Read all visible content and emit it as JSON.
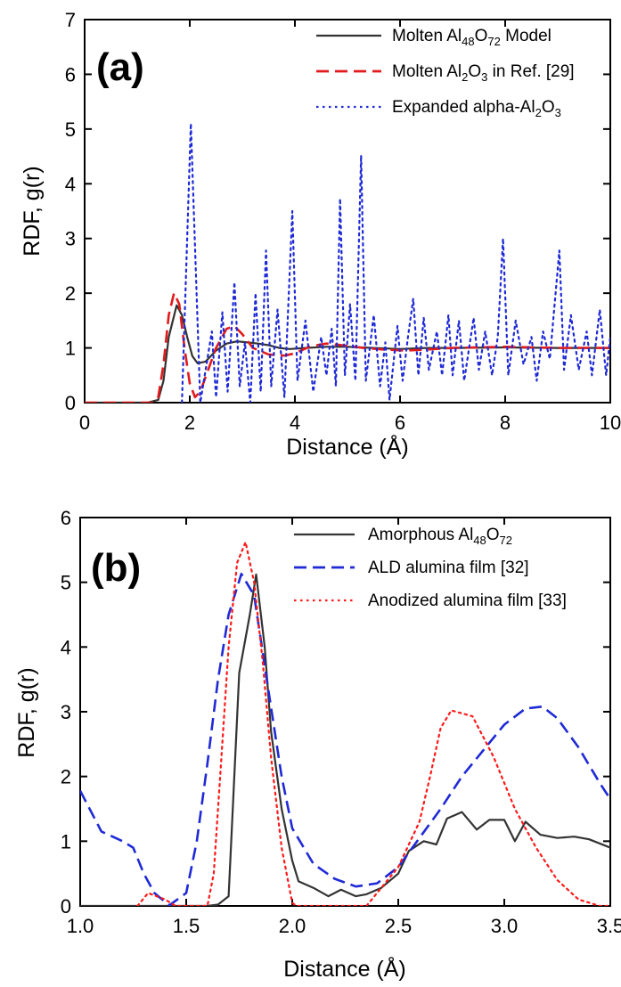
{
  "colors": {
    "black": "#333333",
    "red": "#e31a1c",
    "blue": "#1f2ad6",
    "red_dot": "#ff1a1a"
  },
  "chart_data": [
    {
      "type": "line",
      "panel_label": "(a)",
      "xlabel": "Distance (Å)",
      "ylabel": "RDF, g(r)",
      "xlim": [
        0,
        10
      ],
      "ylim": [
        0,
        7
      ],
      "xticks": [
        0,
        2,
        4,
        6,
        8,
        10
      ],
      "xtick_labels": [
        "0",
        "2",
        "4",
        "6",
        "8",
        "10"
      ],
      "yticks": [
        0,
        1,
        2,
        3,
        4,
        5,
        6,
        7
      ],
      "ytick_labels": [
        "0",
        "1",
        "2",
        "3",
        "4",
        "5",
        "6",
        "7"
      ],
      "legend_position": "top-right",
      "series": [
        {
          "name": "Molten Al48O72 Model",
          "legend": [
            {
              "t": "Molten Al"
            },
            {
              "t": "48",
              "sub": true
            },
            {
              "t": "O"
            },
            {
              "t": "72",
              "sub": true
            },
            {
              "t": " Model"
            }
          ],
          "color": "#333333",
          "style": "solid",
          "points": [
            [
              0,
              0
            ],
            [
              1.2,
              0
            ],
            [
              1.4,
              0.05
            ],
            [
              1.5,
              0.4
            ],
            [
              1.6,
              1.2
            ],
            [
              1.75,
              1.78
            ],
            [
              1.85,
              1.6
            ],
            [
              1.95,
              1.2
            ],
            [
              2.05,
              0.85
            ],
            [
              2.15,
              0.72
            ],
            [
              2.3,
              0.75
            ],
            [
              2.5,
              0.95
            ],
            [
              2.7,
              1.08
            ],
            [
              2.9,
              1.12
            ],
            [
              3.1,
              1.1
            ],
            [
              3.3,
              1.08
            ],
            [
              3.5,
              1.05
            ],
            [
              3.7,
              1.0
            ],
            [
              3.9,
              0.98
            ],
            [
              4.2,
              1.0
            ],
            [
              4.6,
              1.02
            ],
            [
              5,
              1.02
            ],
            [
              5.5,
              1.0
            ],
            [
              6,
              0.98
            ],
            [
              6.5,
              1.0
            ],
            [
              7,
              1.0
            ],
            [
              8,
              1.01
            ],
            [
              9,
              1.0
            ],
            [
              10,
              1.0
            ]
          ]
        },
        {
          "name": "Molten Al2O3 in Ref. [29]",
          "legend": [
            {
              "t": "Molten Al"
            },
            {
              "t": "2",
              "sub": true
            },
            {
              "t": "O"
            },
            {
              "t": "3",
              "sub": true
            },
            {
              "t": " in Ref. [29]"
            }
          ],
          "color": "#e31a1c",
          "style": "dashed",
          "points": [
            [
              0,
              0
            ],
            [
              1.3,
              0
            ],
            [
              1.4,
              0.1
            ],
            [
              1.5,
              0.7
            ],
            [
              1.6,
              1.6
            ],
            [
              1.7,
              2.0
            ],
            [
              1.8,
              1.8
            ],
            [
              1.9,
              1.0
            ],
            [
              2.0,
              0.35
            ],
            [
              2.1,
              0.1
            ],
            [
              2.2,
              0.2
            ],
            [
              2.35,
              0.6
            ],
            [
              2.5,
              1.0
            ],
            [
              2.7,
              1.35
            ],
            [
              2.85,
              1.4
            ],
            [
              3.0,
              1.25
            ],
            [
              3.2,
              1.0
            ],
            [
              3.5,
              0.88
            ],
            [
              3.8,
              0.86
            ],
            [
              4.0,
              0.9
            ],
            [
              4.3,
              1.03
            ],
            [
              4.6,
              1.08
            ],
            [
              4.9,
              1.05
            ],
            [
              5.3,
              1.0
            ],
            [
              5.7,
              0.97
            ],
            [
              6.1,
              0.95
            ],
            [
              6.5,
              0.97
            ],
            [
              7,
              1.0
            ],
            [
              8,
              1.02
            ],
            [
              9,
              1.0
            ],
            [
              10,
              1.0
            ]
          ]
        },
        {
          "name": "Expanded alpha-Al2O3",
          "legend": [
            {
              "t": "Expanded alpha-Al"
            },
            {
              "t": "2",
              "sub": true
            },
            {
              "t": "O"
            },
            {
              "t": "3",
              "sub": true
            }
          ],
          "color": "#1f2ad6",
          "style": "dotted",
          "points": [
            [
              1.85,
              0
            ],
            [
              2.02,
              5.1
            ],
            [
              2.2,
              0
            ],
            [
              2.42,
              1.3
            ],
            [
              2.5,
              0.1
            ],
            [
              2.62,
              1.65
            ],
            [
              2.72,
              0.2
            ],
            [
              2.85,
              2.2
            ],
            [
              2.95,
              0.3
            ],
            [
              3.05,
              1.1
            ],
            [
              3.15,
              0
            ],
            [
              3.25,
              2.0
            ],
            [
              3.35,
              0.2
            ],
            [
              3.45,
              2.78
            ],
            [
              3.55,
              0.3
            ],
            [
              3.67,
              1.7
            ],
            [
              3.8,
              0.1
            ],
            [
              3.95,
              3.5
            ],
            [
              4.05,
              0.4
            ],
            [
              4.2,
              1.5
            ],
            [
              4.35,
              0.2
            ],
            [
              4.5,
              1.2
            ],
            [
              4.6,
              0.5
            ],
            [
              4.7,
              1.35
            ],
            [
              4.78,
              0.3
            ],
            [
              4.86,
              3.73
            ],
            [
              4.95,
              0.5
            ],
            [
              5.05,
              1.8
            ],
            [
              5.15,
              0.4
            ],
            [
              5.26,
              4.52
            ],
            [
              5.35,
              0.4
            ],
            [
              5.5,
              1.6
            ],
            [
              5.62,
              0.3
            ],
            [
              5.72,
              1.1
            ],
            [
              5.8,
              0.05
            ],
            [
              5.95,
              1.4
            ],
            [
              6.05,
              0.4
            ],
            [
              6.15,
              1.2
            ],
            [
              6.25,
              1.9
            ],
            [
              6.35,
              0.5
            ],
            [
              6.45,
              1.55
            ],
            [
              6.55,
              0.6
            ],
            [
              6.7,
              1.3
            ],
            [
              6.8,
              0.5
            ],
            [
              6.92,
              1.6
            ],
            [
              7.0,
              0.5
            ],
            [
              7.12,
              1.5
            ],
            [
              7.22,
              0.4
            ],
            [
              7.4,
              1.55
            ],
            [
              7.5,
              0.6
            ],
            [
              7.62,
              1.3
            ],
            [
              7.75,
              0.5
            ],
            [
              7.86,
              1.2
            ],
            [
              7.96,
              3.0
            ],
            [
              8.06,
              0.5
            ],
            [
              8.2,
              1.5
            ],
            [
              8.35,
              0.7
            ],
            [
              8.5,
              1.2
            ],
            [
              8.6,
              0.4
            ],
            [
              8.72,
              1.3
            ],
            [
              8.85,
              0.8
            ],
            [
              9.03,
              2.78
            ],
            [
              9.12,
              0.6
            ],
            [
              9.25,
              1.6
            ],
            [
              9.4,
              0.6
            ],
            [
              9.55,
              1.3
            ],
            [
              9.65,
              0.5
            ],
            [
              9.8,
              1.7
            ],
            [
              9.92,
              0.5
            ],
            [
              10,
              1.2
            ]
          ]
        }
      ]
    },
    {
      "type": "line",
      "panel_label": "(b)",
      "xlabel": "Distance (Å)",
      "ylabel": "RDF, g(r)",
      "xlim": [
        1.0,
        3.5
      ],
      "ylim": [
        0,
        6
      ],
      "xticks": [
        1.0,
        1.5,
        2.0,
        2.5,
        3.0,
        3.5
      ],
      "xtick_labels": [
        "1.0",
        "1.5",
        "2.0",
        "2.5",
        "3.0",
        "3.5"
      ],
      "yticks": [
        0,
        1,
        2,
        3,
        4,
        5,
        6
      ],
      "ytick_labels": [
        "0",
        "1",
        "2",
        "3",
        "4",
        "5",
        "6"
      ],
      "legend_position": "top-right",
      "series": [
        {
          "name": "Amorphous Al48O72",
          "legend": [
            {
              "t": "Amorphous Al"
            },
            {
              "t": "48",
              "sub": true
            },
            {
              "t": "O"
            },
            {
              "t": "72",
              "sub": true
            }
          ],
          "color": "#333333",
          "style": "solid",
          "points": [
            [
              1.0,
              0
            ],
            [
              1.6,
              0
            ],
            [
              1.65,
              0.02
            ],
            [
              1.7,
              0.15
            ],
            [
              1.75,
              3.6
            ],
            [
              1.8,
              4.5
            ],
            [
              1.83,
              5.12
            ],
            [
              1.87,
              4.0
            ],
            [
              1.9,
              2.7
            ],
            [
              1.95,
              1.5
            ],
            [
              2.0,
              0.7
            ],
            [
              2.03,
              0.38
            ],
            [
              2.1,
              0.28
            ],
            [
              2.17,
              0.15
            ],
            [
              2.23,
              0.25
            ],
            [
              2.3,
              0.15
            ],
            [
              2.35,
              0.18
            ],
            [
              2.42,
              0.28
            ],
            [
              2.5,
              0.5
            ],
            [
              2.55,
              0.85
            ],
            [
              2.62,
              1.0
            ],
            [
              2.68,
              0.95
            ],
            [
              2.73,
              1.35
            ],
            [
              2.8,
              1.45
            ],
            [
              2.87,
              1.18
            ],
            [
              2.93,
              1.33
            ],
            [
              3.0,
              1.33
            ],
            [
              3.05,
              1.0
            ],
            [
              3.1,
              1.3
            ],
            [
              3.17,
              1.1
            ],
            [
              3.25,
              1.05
            ],
            [
              3.33,
              1.07
            ],
            [
              3.4,
              1.03
            ],
            [
              3.5,
              0.9
            ]
          ]
        },
        {
          "name": "ALD alumina film [32]",
          "legend": [
            {
              "t": "ALD alumina film [32]"
            }
          ],
          "color": "#1f2ad6",
          "style": "dashed",
          "points": [
            [
              1.0,
              1.78
            ],
            [
              1.1,
              1.15
            ],
            [
              1.2,
              1.0
            ],
            [
              1.25,
              0.9
            ],
            [
              1.3,
              0.5
            ],
            [
              1.35,
              0.2
            ],
            [
              1.42,
              0.01
            ],
            [
              1.5,
              0.2
            ],
            [
              1.55,
              1.0
            ],
            [
              1.6,
              2.2
            ],
            [
              1.65,
              3.5
            ],
            [
              1.7,
              4.5
            ],
            [
              1.76,
              5.13
            ],
            [
              1.82,
              4.8
            ],
            [
              1.88,
              3.5
            ],
            [
              1.95,
              2.0
            ],
            [
              2.0,
              1.2
            ],
            [
              2.1,
              0.65
            ],
            [
              2.2,
              0.42
            ],
            [
              2.3,
              0.3
            ],
            [
              2.4,
              0.35
            ],
            [
              2.5,
              0.6
            ],
            [
              2.6,
              1.05
            ],
            [
              2.7,
              1.5
            ],
            [
              2.8,
              2.0
            ],
            [
              2.9,
              2.4
            ],
            [
              3.0,
              2.8
            ],
            [
              3.1,
              3.05
            ],
            [
              3.18,
              3.08
            ],
            [
              3.25,
              2.9
            ],
            [
              3.35,
              2.45
            ],
            [
              3.45,
              1.9
            ],
            [
              3.5,
              1.65
            ]
          ]
        },
        {
          "name": "Anodized alumina film [33]",
          "legend": [
            {
              "t": "Anodized alumina film [33]"
            }
          ],
          "color": "#ff1a1a",
          "style": "dotted",
          "points": [
            [
              1.27,
              0
            ],
            [
              1.32,
              0.2
            ],
            [
              1.4,
              0.1
            ],
            [
              1.45,
              0
            ],
            [
              1.55,
              0
            ],
            [
              1.6,
              0
            ],
            [
              1.63,
              0.5
            ],
            [
              1.66,
              2.0
            ],
            [
              1.7,
              4.0
            ],
            [
              1.74,
              5.3
            ],
            [
              1.78,
              5.62
            ],
            [
              1.82,
              5.0
            ],
            [
              1.86,
              3.8
            ],
            [
              1.9,
              2.3
            ],
            [
              1.95,
              0.9
            ],
            [
              2.0,
              0.05
            ],
            [
              2.02,
              0
            ],
            [
              2.35,
              0
            ],
            [
              2.4,
              0.2
            ],
            [
              2.5,
              0.6
            ],
            [
              2.6,
              1.3
            ],
            [
              2.65,
              2.0
            ],
            [
              2.7,
              2.75
            ],
            [
              2.75,
              3.02
            ],
            [
              2.85,
              2.93
            ],
            [
              2.95,
              2.3
            ],
            [
              3.05,
              1.5
            ],
            [
              3.15,
              0.9
            ],
            [
              3.25,
              0.4
            ],
            [
              3.35,
              0.1
            ],
            [
              3.45,
              0
            ],
            [
              3.5,
              0
            ]
          ]
        }
      ]
    }
  ]
}
